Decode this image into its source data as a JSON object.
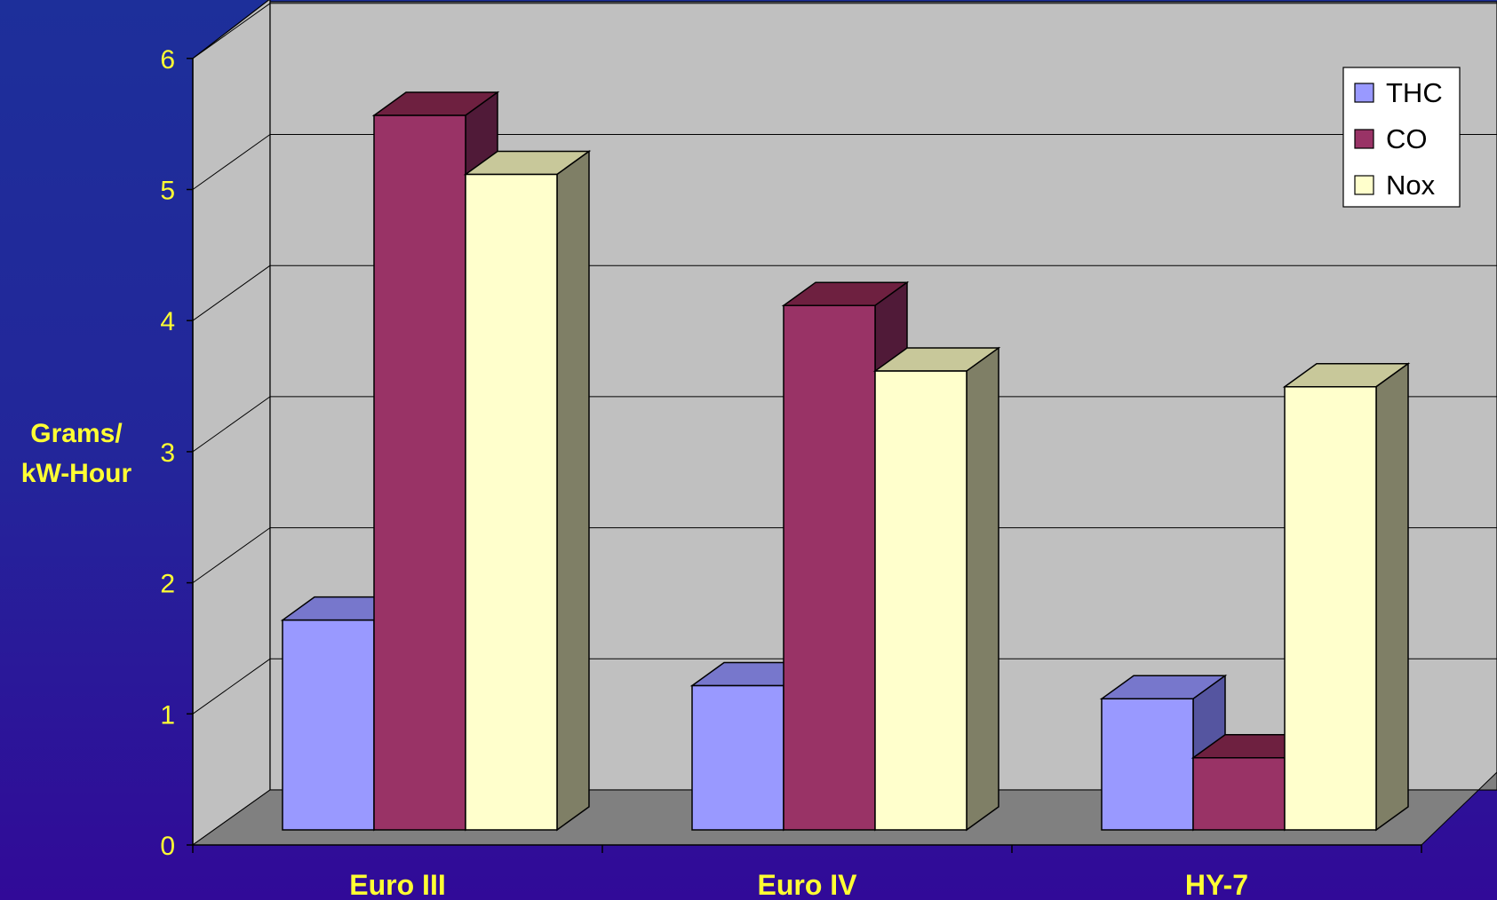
{
  "chart_data": {
    "type": "bar",
    "categories": [
      "Euro III",
      "Euro IV",
      "HY-7"
    ],
    "series": [
      {
        "name": "THC",
        "values": [
          1.6,
          1.1,
          1.0
        ],
        "color": "#9999ff",
        "side": "#5555a0",
        "top": "#7777cc"
      },
      {
        "name": "CO",
        "values": [
          5.45,
          4.0,
          0.55
        ],
        "color": "#993366",
        "side": "#501a38",
        "top": "#6e2040"
      },
      {
        "name": "Nox",
        "values": [
          5.0,
          3.5,
          3.38
        ],
        "color": "#ffffcc",
        "side": "#7f7f66",
        "top": "#c8c89a"
      }
    ],
    "ylabel": [
      "Grams/",
      "kW-Hour"
    ],
    "ylim": [
      0,
      6
    ],
    "yticks": [
      0,
      1,
      2,
      3,
      4,
      5,
      6
    ],
    "legend_position": "top-right",
    "grid": true,
    "colors": {
      "wall": "#c0c0c0",
      "floor": "#808080",
      "label": "#ffff33"
    }
  }
}
